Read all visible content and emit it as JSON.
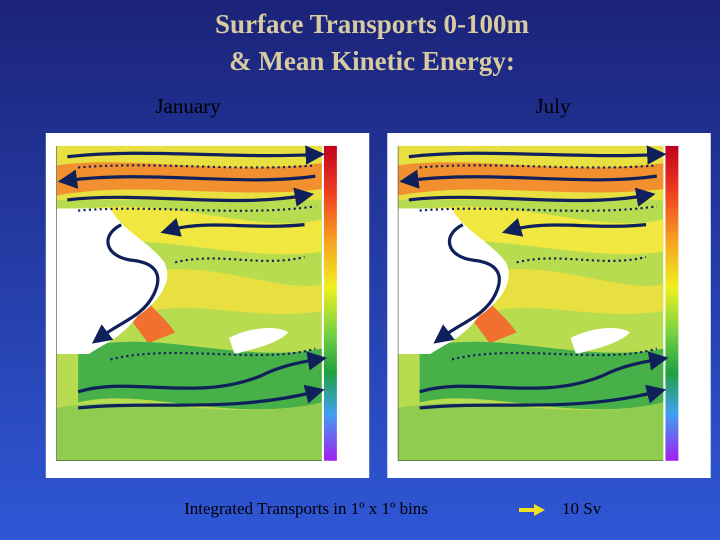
{
  "slide": {
    "title_lines": [
      "Surface Transports 0-100m",
      "& Mean Kinetic Energy:"
    ],
    "panels": [
      {
        "label": "January"
      },
      {
        "label": "July"
      }
    ],
    "caption": "Integrated Transports in 1º x 1º bins",
    "scale_label": "10 Sv"
  }
}
